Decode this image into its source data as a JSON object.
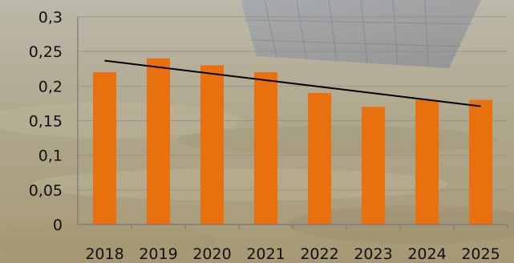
{
  "chart_data": {
    "type": "bar",
    "title": "",
    "xlabel": "",
    "ylabel": "",
    "categories": [
      "2018",
      "2019",
      "2020",
      "2021",
      "2022",
      "2023",
      "2024",
      "2025"
    ],
    "values": [
      0.22,
      0.24,
      0.23,
      0.22,
      0.19,
      0.17,
      0.18,
      0.18
    ],
    "ylim": [
      0,
      0.3
    ],
    "yticks": [
      0,
      0.05,
      0.1,
      0.15,
      0.2,
      0.25,
      0.3
    ],
    "ytick_labels": [
      "0",
      "0,05",
      "0,1",
      "0,15",
      "0,2",
      "0,25",
      "0,3"
    ],
    "grid": true,
    "legend": "none",
    "bar_color": "#e8700e",
    "trendline": {
      "type": "linear",
      "color": "#000000"
    }
  }
}
